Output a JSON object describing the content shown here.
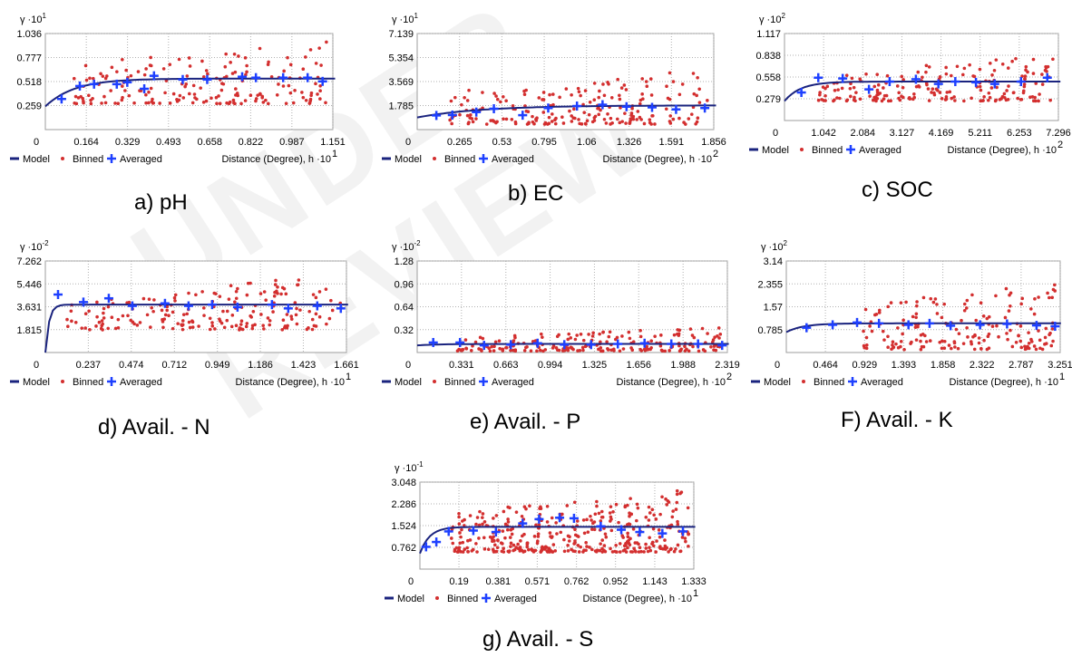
{
  "watermark": "UNDER REVIEW",
  "legend": {
    "model": "Model",
    "binned": "Binned",
    "averaged": "Averaged"
  },
  "colors": {
    "model": "#1a237e",
    "binned": "#d32f2f",
    "averaged": "#1e40ff",
    "grid": "#b0b0b0",
    "frame": "#9e9e9e"
  },
  "chart_data": [
    {
      "type": "scatter",
      "caption": "a) pH",
      "ylabel_base": "γ ·10",
      "ylabel_exp": "1",
      "xlabel_base": "Distance (Degree), h ·10",
      "xlabel_exp": "1",
      "xticks": [
        "0",
        "0.164",
        "0.329",
        "0.493",
        "0.658",
        "0.822",
        "0.987",
        "1.151"
      ],
      "yticks": [
        "0.259",
        "0.518",
        "0.777",
        "1.036"
      ],
      "xlim": [
        0,
        1.151
      ],
      "ylim": [
        0,
        1.036
      ],
      "model": {
        "nugget": 0.25,
        "sill": 0.55,
        "range": 0.35,
        "end_x": 1.16
      },
      "averaged": [
        [
          0.065,
          0.33
        ],
        [
          0.138,
          0.47
        ],
        [
          0.195,
          0.49
        ],
        [
          0.286,
          0.49
        ],
        [
          0.328,
          0.51
        ],
        [
          0.396,
          0.44
        ],
        [
          0.435,
          0.58
        ],
        [
          0.55,
          0.54
        ],
        [
          0.648,
          0.54
        ],
        [
          0.788,
          0.57
        ],
        [
          0.843,
          0.56
        ],
        [
          0.952,
          0.56
        ],
        [
          1.05,
          0.56
        ],
        [
          1.11,
          0.52
        ]
      ],
      "binned_range": [
        0.28,
        1.0
      ],
      "binned_xstart": 0.11,
      "binned_count": 180,
      "seed": 11
    },
    {
      "type": "scatter",
      "caption": "b) EC",
      "ylabel_base": "γ ·10",
      "ylabel_exp": "1",
      "xlabel_base": "Distance (Degree), h ·10",
      "xlabel_exp": "2",
      "xticks": [
        "0",
        "0.265",
        "0.53",
        "0.795",
        "1.06",
        "1.326",
        "1.591",
        "1.856"
      ],
      "yticks": [
        "1.785",
        "3.569",
        "5.354",
        "7.139"
      ],
      "xlim": [
        0,
        1.856
      ],
      "ylim": [
        0,
        7.139
      ],
      "model": {
        "nugget": 0.9,
        "sill": 1.8,
        "range": 1.2,
        "end_x": 1.87
      },
      "averaged": [
        [
          0.12,
          1.05
        ],
        [
          0.22,
          1.08
        ],
        [
          0.37,
          1.3
        ],
        [
          0.48,
          1.55
        ],
        [
          0.66,
          1.07
        ],
        [
          0.82,
          1.6
        ],
        [
          1.0,
          1.75
        ],
        [
          1.16,
          1.85
        ],
        [
          1.31,
          1.7
        ],
        [
          1.47,
          1.65
        ],
        [
          1.62,
          1.5
        ],
        [
          1.8,
          1.6
        ]
      ],
      "binned_range": [
        0.4,
        4.5
      ],
      "binned_xstart": 0.2,
      "binned_count": 200,
      "seed": 23
    },
    {
      "type": "scatter",
      "caption": "c) SOC",
      "ylabel_base": "γ ·10",
      "ylabel_exp": "2",
      "xlabel_base": "Distance (Degree), h ·10",
      "xlabel_exp": "2",
      "xticks": [
        "0",
        "1.042",
        "2.084",
        "3.127",
        "4.169",
        "5.211",
        "6.253",
        "7.296"
      ],
      "yticks": [
        "0.279",
        "0.558",
        "0.838",
        "1.117"
      ],
      "xlim": [
        0,
        7.296
      ],
      "ylim": [
        0,
        1.117
      ],
      "model": {
        "nugget": 0.25,
        "sill": 0.5,
        "range": 1.3,
        "end_x": 7.35
      },
      "averaged": [
        [
          0.45,
          0.36
        ],
        [
          0.9,
          0.55
        ],
        [
          1.55,
          0.54
        ],
        [
          2.25,
          0.4
        ],
        [
          2.8,
          0.5
        ],
        [
          3.5,
          0.53
        ],
        [
          4.1,
          0.47
        ],
        [
          4.55,
          0.5
        ],
        [
          5.1,
          0.49
        ],
        [
          5.6,
          0.47
        ],
        [
          6.3,
          0.5
        ],
        [
          7.0,
          0.55
        ]
      ],
      "binned_range": [
        0.25,
        0.85
      ],
      "binned_xstart": 0.9,
      "binned_count": 190,
      "seed": 37
    },
    {
      "type": "scatter",
      "caption": "d) Avail. - N",
      "ylabel_base": "γ ·10",
      "ylabel_exp": "-2",
      "xlabel_base": "Distance (Degree), h ·10",
      "xlabel_exp": "1",
      "xticks": [
        "0",
        "0.237",
        "0.474",
        "0.712",
        "0.949",
        "1.186",
        "1.423",
        "1.661"
      ],
      "yticks": [
        "1.815",
        "3.631",
        "5.446",
        "7.262"
      ],
      "xlim": [
        0,
        1.661
      ],
      "ylim": [
        0,
        7.262
      ],
      "model": {
        "nugget": 0.0,
        "sill": 3.8,
        "range": 0.06,
        "end_x": 1.67
      },
      "averaged": [
        [
          0.07,
          4.6
        ],
        [
          0.21,
          4.0
        ],
        [
          0.35,
          4.3
        ],
        [
          0.48,
          3.7
        ],
        [
          0.66,
          3.9
        ],
        [
          0.79,
          3.7
        ],
        [
          0.92,
          3.8
        ],
        [
          1.06,
          3.6
        ],
        [
          1.25,
          3.8
        ],
        [
          1.34,
          3.5
        ],
        [
          1.5,
          3.7
        ],
        [
          1.63,
          3.5
        ]
      ],
      "binned_range": [
        1.8,
        6.2
      ],
      "binned_xstart": 0.12,
      "binned_count": 190,
      "seed": 41
    },
    {
      "type": "scatter",
      "caption": "e) Avail. - P",
      "ylabel_base": "γ ·10",
      "ylabel_exp": "-2",
      "xlabel_base": "Distance (Degree), h ·10",
      "xlabel_exp": "2",
      "xticks": [
        "0",
        "0.331",
        "0.663",
        "0.994",
        "1.325",
        "1.656",
        "1.988",
        "2.319"
      ],
      "yticks": [
        "0.32",
        "0.64",
        "0.96",
        "1.28"
      ],
      "xlim": [
        0,
        2.319
      ],
      "ylim": [
        0,
        1.28
      ],
      "model": {
        "nugget": 0.1,
        "sill": 0.12,
        "range": 0.5,
        "end_x": 2.33
      },
      "averaged": [
        [
          0.12,
          0.14
        ],
        [
          0.32,
          0.14
        ],
        [
          0.5,
          0.1
        ],
        [
          0.7,
          0.11
        ],
        [
          0.9,
          0.13
        ],
        [
          1.1,
          0.11
        ],
        [
          1.3,
          0.11
        ],
        [
          1.5,
          0.12
        ],
        [
          1.7,
          0.13
        ],
        [
          1.9,
          0.12
        ],
        [
          2.1,
          0.12
        ],
        [
          2.28,
          0.1
        ]
      ],
      "binned_range": [
        0.02,
        0.35
      ],
      "binned_xstart": 0.3,
      "binned_count": 200,
      "seed": 53
    },
    {
      "type": "scatter",
      "caption": "F) Avail. - K",
      "ylabel_base": "γ ·10",
      "ylabel_exp": "2",
      "xlabel_base": "Distance (Degree), h ·10",
      "xlabel_exp": "1",
      "xticks": [
        "0",
        "0.464",
        "0.929",
        "1.393",
        "1.858",
        "2.322",
        "2.787",
        "3.251"
      ],
      "yticks": [
        "0.785",
        "1.57",
        "2.355",
        "3.14"
      ],
      "xlim": [
        0,
        3.251
      ],
      "ylim": [
        0,
        3.14
      ],
      "model": {
        "nugget": 0.7,
        "sill": 1.0,
        "range": 0.6,
        "end_x": 3.26
      },
      "averaged": [
        [
          0.24,
          0.85
        ],
        [
          0.55,
          0.95
        ],
        [
          0.84,
          1.03
        ],
        [
          1.1,
          1.0
        ],
        [
          1.45,
          0.95
        ],
        [
          1.7,
          1.0
        ],
        [
          1.95,
          0.92
        ],
        [
          2.3,
          0.95
        ],
        [
          2.62,
          0.98
        ],
        [
          2.97,
          0.93
        ],
        [
          3.19,
          0.9
        ]
      ],
      "binned_range": [
        0.1,
        2.4
      ],
      "binned_xstart": 0.9,
      "binned_count": 170,
      "seed": 61
    },
    {
      "type": "scatter",
      "caption": "g) Avail. - S",
      "ylabel_base": "γ ·10",
      "ylabel_exp": "-1",
      "xlabel_base": "Distance (Degree), h ·10",
      "xlabel_exp": "1",
      "xticks": [
        "0",
        "0.19",
        "0.381",
        "0.571",
        "0.762",
        "0.952",
        "1.143",
        "1.333"
      ],
      "yticks": [
        "0.762",
        "1.524",
        "2.286",
        "3.048"
      ],
      "xlim": [
        0,
        1.333
      ],
      "ylim": [
        0,
        3.048
      ],
      "model": {
        "nugget": 0.55,
        "sill": 1.48,
        "range": 0.14,
        "end_x": 1.34
      },
      "averaged": [
        [
          0.03,
          0.78
        ],
        [
          0.08,
          0.95
        ],
        [
          0.14,
          1.32
        ],
        [
          0.26,
          1.35
        ],
        [
          0.37,
          1.3
        ],
        [
          0.5,
          1.6
        ],
        [
          0.58,
          1.75
        ],
        [
          0.68,
          1.8
        ],
        [
          0.75,
          1.78
        ],
        [
          0.88,
          1.5
        ],
        [
          0.98,
          1.38
        ],
        [
          1.07,
          1.3
        ],
        [
          1.18,
          1.25
        ],
        [
          1.28,
          1.32
        ]
      ],
      "binned_range": [
        0.6,
        2.9
      ],
      "binned_xstart": 0.15,
      "binned_count": 380,
      "seed": 71
    }
  ]
}
